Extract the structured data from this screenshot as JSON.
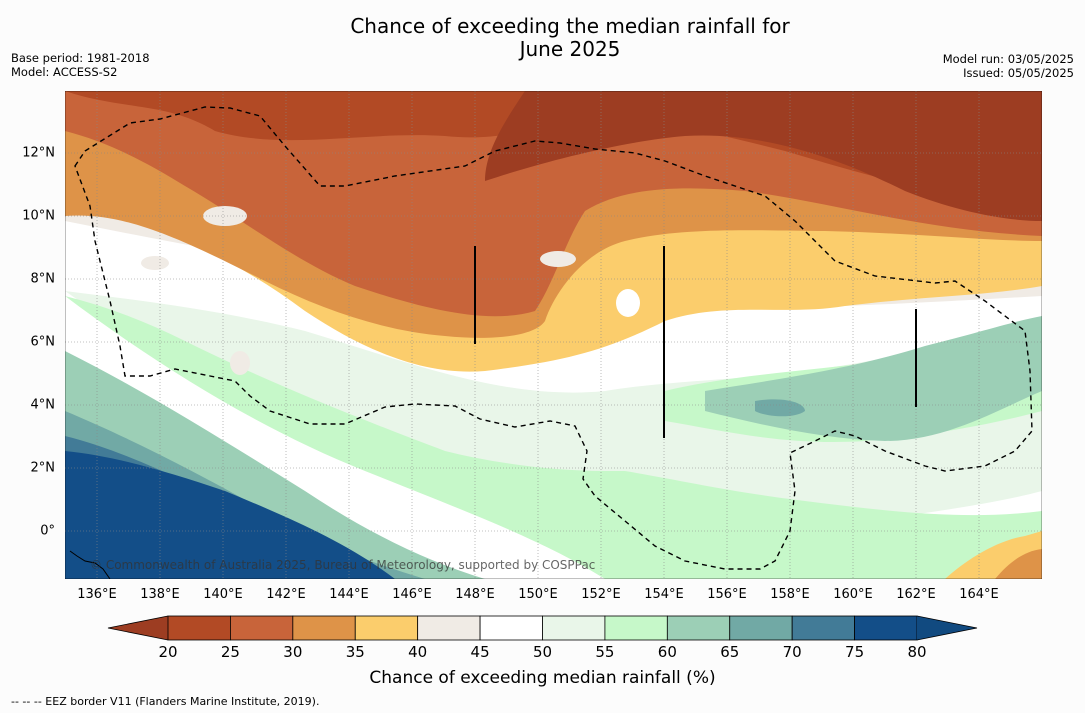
{
  "title_line1": "Chance of exceeding the median rainfall for",
  "title_line2": "June 2025",
  "base_period": "Base period: 1981-2018",
  "model": "Model: ACCESS-S2",
  "model_run": "Model run: 03/05/2025",
  "issued": "Issued: 05/05/2025",
  "copyright": "© Commonwealth of Australia 2025, Bureau of Meteorology, supported by COSPPac",
  "footnote": "--  --  -- EEZ border V11 (Flanders Marine Institute, 2019).",
  "colorbar_label": "Chance of exceeding median rainfall (%)",
  "colorbar": {
    "ticks": [
      "20",
      "25",
      "30",
      "35",
      "40",
      "45",
      "50",
      "55",
      "60",
      "65",
      "70",
      "75",
      "80"
    ],
    "colors": [
      "#b24a25",
      "#c8643a",
      "#de9348",
      "#fbcd6c",
      "#f0ebe5",
      "#ffffff",
      "#ffffff",
      "#e9f6e9",
      "#c6f8c9",
      "#9ccfb6",
      "#71a9a5",
      "#427b97",
      "#134e88"
    ],
    "under_color": "#9d3d22",
    "over_color": "#114a80"
  },
  "axes": {
    "lon_labels": [
      "136°E",
      "138°E",
      "140°E",
      "142°E",
      "144°E",
      "146°E",
      "148°E",
      "150°E",
      "152°E",
      "154°E",
      "156°E",
      "158°E",
      "160°E",
      "162°E",
      "164°E"
    ],
    "lat_labels": [
      "12°N",
      "10°N",
      "8°N",
      "6°N",
      "4°N",
      "2°N",
      "0°"
    ]
  }
}
